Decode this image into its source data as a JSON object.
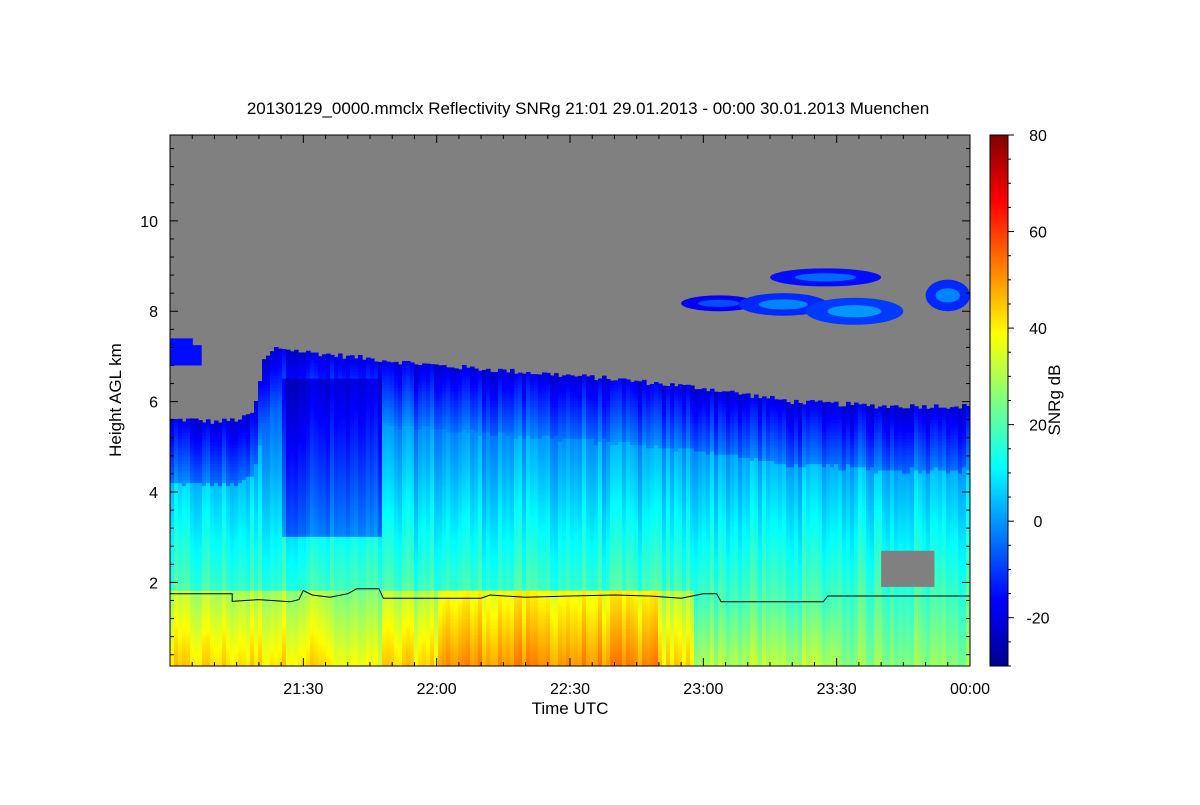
{
  "chart_data": {
    "type": "heatmap",
    "title": "20130129_0000.mmclx Reflectivity SNRg   21:01 29.01.2013 - 00:00 30.01.2013 Muenchen",
    "xlabel": "Time UTC",
    "ylabel": "Height AGL km",
    "colorbar_label": "SNRg dB",
    "x_ticks": [
      "21:30",
      "22:00",
      "22:30",
      "23:00",
      "23:30",
      "00:00"
    ],
    "x_tick_minutes": [
      30,
      60,
      90,
      120,
      150,
      180
    ],
    "xlim_minutes": [
      0,
      180
    ],
    "x_start": "21:00",
    "y_ticks": [
      2,
      4,
      6,
      8,
      10
    ],
    "ylim": [
      0.15,
      11.9
    ],
    "colorbar_ticks": [
      80,
      60,
      40,
      20,
      0,
      -20
    ],
    "colorbar_range": [
      -30,
      80
    ],
    "no_signal_color": "#808080",
    "colormap": [
      "#00008f",
      "#0000ff",
      "#0080ff",
      "#00ffff",
      "#80ff80",
      "#ffff00",
      "#ff8000",
      "#ff0000",
      "#800000"
    ],
    "cloud_top_km": [
      [
        0,
        5.6
      ],
      [
        5,
        5.6
      ],
      [
        10,
        5.55
      ],
      [
        15,
        5.6
      ],
      [
        17,
        5.65
      ],
      [
        19,
        5.8
      ],
      [
        20,
        6.3
      ],
      [
        21,
        6.9
      ],
      [
        24,
        7.2
      ],
      [
        30,
        7.1
      ],
      [
        40,
        7.0
      ],
      [
        50,
        6.9
      ],
      [
        60,
        6.8
      ],
      [
        80,
        6.65
      ],
      [
        100,
        6.5
      ],
      [
        120,
        6.3
      ],
      [
        140,
        6.0
      ],
      [
        160,
        5.9
      ],
      [
        180,
        5.9
      ]
    ],
    "upper_cloud_top_km": [
      [
        0,
        7.4
      ],
      [
        5,
        7.25
      ],
      [
        7,
        7.05
      ]
    ],
    "cirrus_patches": [
      {
        "t": [
          115,
          132
        ],
        "h": [
          8.0,
          8.35
        ],
        "snr": -18
      },
      {
        "t": [
          128,
          148
        ],
        "h": [
          7.9,
          8.4
        ],
        "snr": -12
      },
      {
        "t": [
          143,
          165
        ],
        "h": [
          7.7,
          8.3
        ],
        "snr": -10
      },
      {
        "t": [
          135,
          160
        ],
        "h": [
          8.55,
          8.95
        ],
        "snr": -15
      },
      {
        "t": [
          170,
          180
        ],
        "h": [
          8.0,
          8.7
        ],
        "snr": -12
      }
    ],
    "gaps": [
      {
        "t": [
          160,
          172
        ],
        "h": [
          1.9,
          2.7
        ]
      }
    ],
    "boundary_line_km": [
      [
        0,
        1.75
      ],
      [
        14,
        1.75
      ],
      [
        14,
        1.58
      ],
      [
        20,
        1.62
      ],
      [
        27,
        1.57
      ],
      [
        29,
        1.62
      ],
      [
        30,
        1.82
      ],
      [
        32,
        1.72
      ],
      [
        36,
        1.67
      ],
      [
        40,
        1.75
      ],
      [
        42,
        1.86
      ],
      [
        47,
        1.86
      ],
      [
        48,
        1.65
      ],
      [
        70,
        1.65
      ],
      [
        72,
        1.72
      ],
      [
        80,
        1.67
      ],
      [
        90,
        1.7
      ],
      [
        100,
        1.72
      ],
      [
        108,
        1.7
      ],
      [
        115,
        1.65
      ],
      [
        120,
        1.75
      ],
      [
        123,
        1.75
      ],
      [
        124,
        1.57
      ],
      [
        147,
        1.57
      ],
      [
        148,
        1.7
      ],
      [
        180,
        1.7
      ]
    ]
  }
}
